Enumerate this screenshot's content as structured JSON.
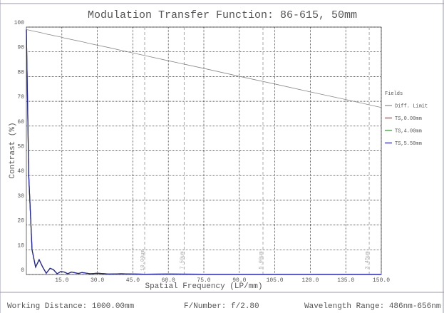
{
  "chart_data": {
    "type": "line",
    "title": "Modulation Transfer Function: 86-615, 50mm",
    "x_label": "Spatial Frequency (LP/mm)",
    "y_label": "Contrast (%)",
    "legend_title": "Fields",
    "legend": "right",
    "grid": true,
    "xlim": [
      0,
      150
    ],
    "ylim": [
      0,
      100
    ],
    "xticks": [
      {
        "value": 15,
        "label": "15.0"
      },
      {
        "value": 30,
        "label": "30.0"
      },
      {
        "value": 45,
        "label": "45.0"
      },
      {
        "value": 60,
        "label": "60.0"
      },
      {
        "value": 75,
        "label": "75.0"
      },
      {
        "value": 90,
        "label": "90.0"
      },
      {
        "value": 105,
        "label": "105.0"
      },
      {
        "value": 120,
        "label": "120.0"
      },
      {
        "value": 135,
        "label": "135.0"
      },
      {
        "value": 150,
        "label": "150.0"
      }
    ],
    "yticks": [
      0,
      10,
      20,
      30,
      40,
      50,
      60,
      70,
      80,
      90,
      100
    ],
    "annotations": [
      {
        "x": 50,
        "label": "10.00µm"
      },
      {
        "x": 66.7,
        "label": "7.50µm"
      },
      {
        "x": 100,
        "label": "5.00µm"
      },
      {
        "x": 144.9,
        "label": "3.45µm"
      }
    ],
    "x": [
      0,
      1,
      2.4,
      3.9,
      5.4,
      6.9,
      8.4,
      10,
      11.4,
      13,
      14.5,
      16,
      17.5,
      19,
      22,
      23.5,
      27,
      30,
      35,
      40,
      50,
      60,
      75,
      90,
      105,
      120,
      135,
      150
    ],
    "series": [
      {
        "name": "Diff. Limit",
        "color": "#888888",
        "values": [
          99,
          98.8,
          98.5,
          98.2,
          97.9,
          97.6,
          97.2,
          96.9,
          96.6,
          96.3,
          96.0,
          95.6,
          95.3,
          95.0,
          94.4,
          94.1,
          93.3,
          92.7,
          91.7,
          90.6,
          88.5,
          86.4,
          83.3,
          80.1,
          77.0,
          73.8,
          70.7,
          67.5
        ]
      },
      {
        "name": "TS,0.00mm",
        "color": "#e02020",
        "values": [
          99,
          40,
          10,
          3,
          6,
          3,
          0.5,
          2.5,
          2,
          0.3,
          1.2,
          1,
          0.3,
          1,
          0.4,
          0.8,
          0.3,
          0.5,
          0.2,
          0.3,
          0.1,
          0.2,
          0.1,
          0.1,
          0.1,
          0.1,
          0.1,
          0.1
        ]
      },
      {
        "name": "TS,4.00mm",
        "color": "#20a020",
        "values": [
          99,
          40,
          10,
          3,
          6,
          3,
          0.5,
          2.5,
          2,
          0.3,
          1.2,
          1,
          0.3,
          1,
          0.4,
          0.8,
          0.3,
          0.5,
          0.2,
          0.3,
          0.1,
          0.2,
          0.1,
          0.1,
          0.1,
          0.1,
          0.1,
          0.1
        ]
      },
      {
        "name": "TS,5.50mm",
        "color": "#2020b0",
        "values": [
          99,
          40,
          10,
          3,
          6,
          3,
          0.5,
          2.5,
          2,
          0.3,
          1.2,
          1,
          0.3,
          1,
          0.4,
          0.8,
          0.3,
          0.5,
          0.2,
          0.3,
          0.1,
          0.2,
          0.1,
          0.1,
          0.1,
          0.1,
          0.1,
          0.1
        ]
      }
    ],
    "footer": [
      "Working Distance: 1000.00mm",
      "F/Number: f/2.80",
      "Wavelength Range: 486nm-656nm"
    ]
  }
}
